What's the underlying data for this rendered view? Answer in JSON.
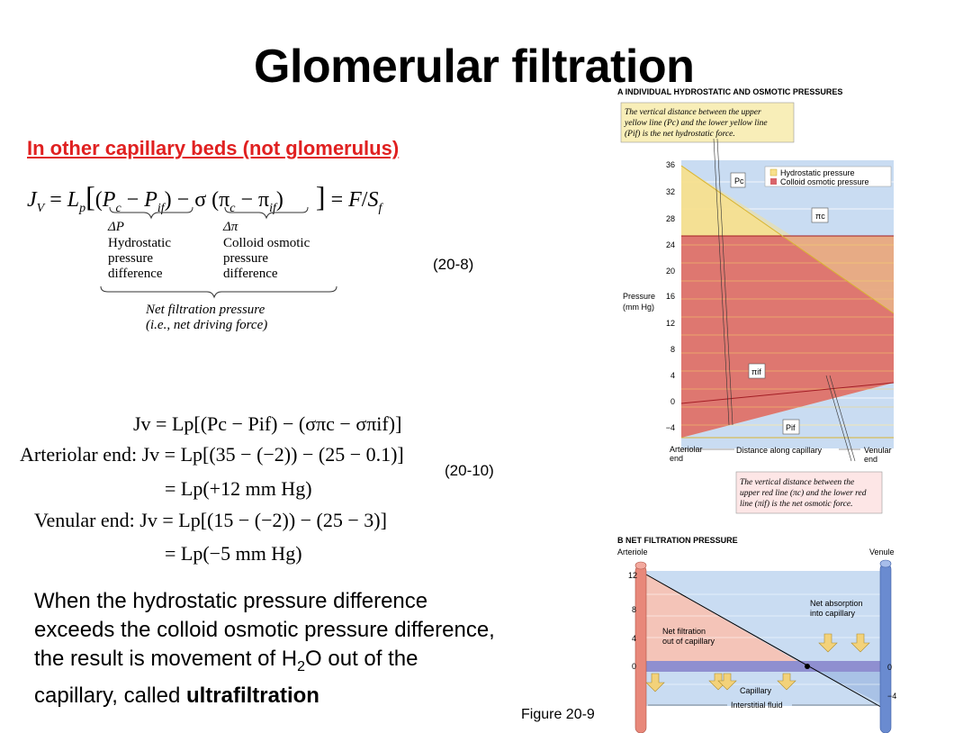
{
  "title": "Glomerular filtration",
  "subtitle": "In other capillary beds (not glomerulus)",
  "eq_20_8": {
    "main": "J",
    "number": "(20-8)",
    "delta_p": "ΔP",
    "delta_p_label": [
      "Hydrostatic",
      "pressure",
      "difference"
    ],
    "delta_pi": "Δπ",
    "delta_pi_label": [
      "Colloid osmotic",
      "pressure",
      "difference"
    ],
    "nfp_label": [
      "Net filtration pressure",
      "(i.e., net driving force)"
    ]
  },
  "eq_20_10": {
    "number": "(20-10)",
    "line1": "Jv = Lp[(Pc − Pif) − (σπc − σπif)]",
    "line2_label": "Arteriolar end:",
    "line2": "Jv = Lp[(35 − (−2)) − (25 − 0.1)]",
    "line3": "= Lp(+12 mm Hg)",
    "line4_label": "Venular end:",
    "line4": "Jv = Lp[(15 − (−2)) − (25 − 3)]",
    "line5": "= Lp(−5 mm Hg)"
  },
  "bottom_text": {
    "before": "When the hydrostatic pressure difference exceeds the colloid osmotic pressure difference, the result is movement of H",
    "sub": "2",
    "mid": "O out of the capillary, called ",
    "bold": "ultrafiltration"
  },
  "figure_label": "Figure 20-9",
  "panel_a": {
    "heading": "A   INDIVIDUAL HYDROSTATIC AND OSMOTIC PRESSURES",
    "note_top": [
      "The vertical distance between the upper",
      "yellow line (Pc) and the lower yellow line",
      "(Pif) is the net hydrostatic force."
    ],
    "note_bottom": [
      "The vertical distance between the",
      "upper red line (πc) and the lower red",
      "line (πif) is the net osmotic force."
    ],
    "legend": [
      "Hydrostatic pressure",
      "Colloid osmotic pressure"
    ],
    "ylabel": [
      "Pressure",
      "(mm Hg)"
    ],
    "yticks": [
      "36",
      "32",
      "28",
      "24",
      "20",
      "16",
      "12",
      "8",
      "4",
      "0",
      "−4"
    ],
    "x_left": [
      "Arteriolar",
      "end"
    ],
    "x_mid": "Distance along capillary",
    "x_right": [
      "Venular",
      "end"
    ],
    "labels": {
      "pc": "Pc",
      "pic": "πc",
      "piif": "πif",
      "pif": "Pif"
    },
    "colors": {
      "hydrostatic": "#f7e08c",
      "osmotic": "#d9646a",
      "bg": "#c9dcf2"
    }
  },
  "panel_b": {
    "heading": "B   NET FILTRATION PRESSURE",
    "arteriole": "Arteriole",
    "venule": "Venule",
    "yticks": [
      "12",
      "8",
      "4",
      "0"
    ],
    "right_ticks": [
      "0",
      "−4"
    ],
    "net_filtration": [
      "Net filtration",
      "out of capillary"
    ],
    "net_absorption": [
      "Net absorption",
      "into capillary"
    ],
    "capillary": "Capillary",
    "interstitial": "Interstitial fluid",
    "colors": {
      "filtration": "#f4c4b8",
      "absorption": "#c9dcf2",
      "arrow": "#f3d27a"
    }
  }
}
